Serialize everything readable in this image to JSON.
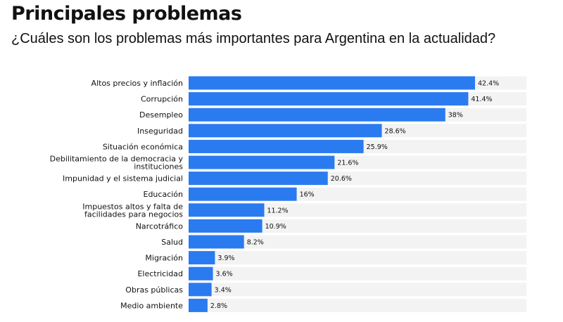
{
  "title": "Principales problemas",
  "subtitle": "¿Cuáles son los problemas más importantes para Argentina en la actualidad?",
  "chart_data": {
    "type": "bar",
    "orientation": "horizontal",
    "bar_color": "#2b7bf0",
    "track_color": "#f3f3f3",
    "xlim": [
      0,
      42.4
    ],
    "grid": false,
    "categories": [
      [
        "Altos precios y inflación"
      ],
      [
        "Corrupción"
      ],
      [
        "Desempleo"
      ],
      [
        "Inseguridad"
      ],
      [
        "Situación económica"
      ],
      [
        "Debilitamiento de la democracia y",
        "instituciones"
      ],
      [
        "Impunidad y el sistema judicial"
      ],
      [
        "Educación"
      ],
      [
        "Impuestos altos y falta de",
        "facilidades para negocios"
      ],
      [
        "Narcotráfico"
      ],
      [
        "Salud"
      ],
      [
        "Migración"
      ],
      [
        "Electricidad"
      ],
      [
        "Obras públicas"
      ],
      [
        "Medio ambiente"
      ]
    ],
    "values": [
      42.4,
      41.4,
      38,
      28.6,
      25.9,
      21.6,
      20.6,
      16,
      11.2,
      10.9,
      8.2,
      3.9,
      3.6,
      3.4,
      2.8
    ],
    "value_labels": [
      "42.4%",
      "41.4%",
      "38%",
      "28.6%",
      "25.9%",
      "21.6%",
      "20.6%",
      "16%",
      "11.2%",
      "10.9%",
      "8.2%",
      "3.9%",
      "3.6%",
      "3.4%",
      "2.8%"
    ]
  }
}
